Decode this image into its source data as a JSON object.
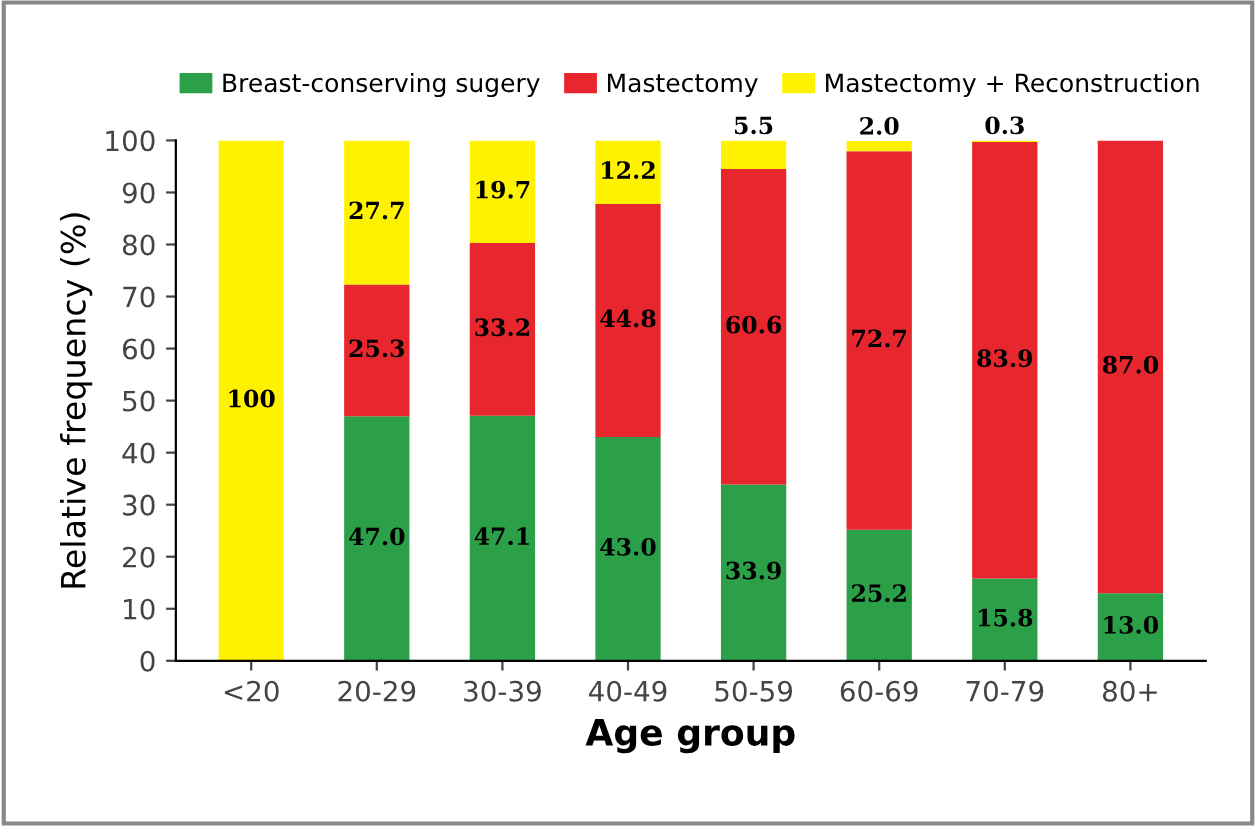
{
  "chart_data": {
    "type": "bar",
    "stacked": true,
    "categories": [
      "<20",
      "20-29",
      "30-39",
      "40-49",
      "50-59",
      "60-69",
      "70-79",
      "80+"
    ],
    "series": [
      {
        "name": "Breast-conserving sugery",
        "color": "#2ca048",
        "values": [
          0,
          47.0,
          47.1,
          43.0,
          33.9,
          25.2,
          15.8,
          13.0
        ],
        "value_labels": [
          null,
          "47.0",
          "47.1",
          "43.0",
          "33.9",
          "25.2",
          "15.8",
          "13.0"
        ]
      },
      {
        "name": "Mastectomy",
        "color": "#e8262e",
        "values": [
          0,
          25.3,
          33.2,
          44.8,
          60.6,
          72.7,
          83.9,
          87.0
        ],
        "value_labels": [
          null,
          "25.3",
          "33.2",
          "44.8",
          "60.6",
          "72.7",
          "83.9",
          "87.0"
        ]
      },
      {
        "name": "Mastectomy + Reconstruction",
        "color": "#fff200",
        "values": [
          100,
          27.7,
          19.7,
          12.2,
          5.5,
          2.0,
          0.3,
          0
        ],
        "value_labels": [
          "100",
          "27.7",
          "19.7",
          "12.2",
          "5.5",
          "2.0",
          "0.3",
          null
        ]
      }
    ],
    "ylabel": "Relative frequency (%)",
    "xlabel": "Age group",
    "ylim": [
      0,
      100
    ],
    "yticks": [
      0,
      10,
      20,
      30,
      40,
      50,
      60,
      70,
      80,
      90,
      100
    ],
    "grid": false,
    "legend": "top"
  }
}
